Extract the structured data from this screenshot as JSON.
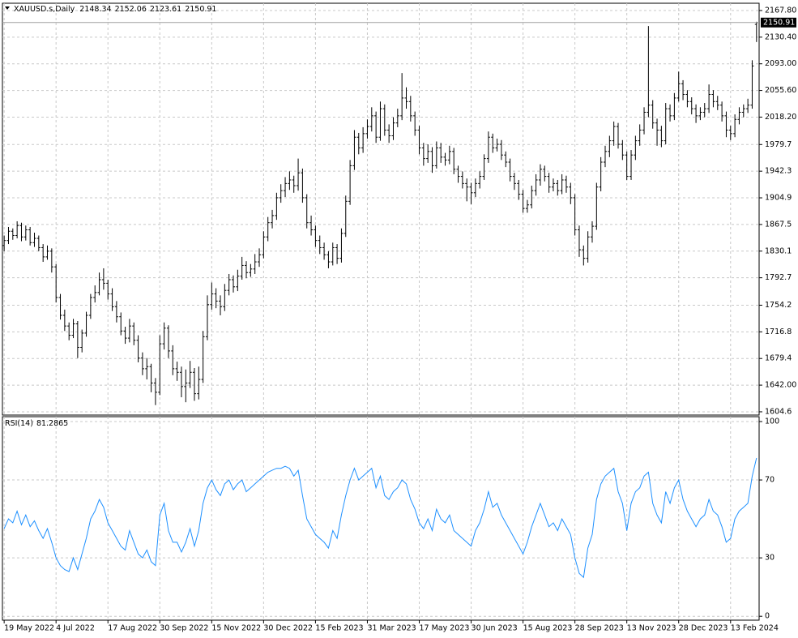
{
  "chart_data": [
    {
      "type": "ohlc",
      "title": "XAUUSD.s,Daily",
      "color": "#000000",
      "ohlc": [
        [
          1838,
          1852,
          1830,
          1845
        ],
        [
          1845,
          1864,
          1840,
          1858
        ],
        [
          1858,
          1862,
          1846,
          1852
        ],
        [
          1852,
          1872,
          1848,
          1866
        ],
        [
          1866,
          1870,
          1844,
          1850
        ],
        [
          1850,
          1866,
          1845,
          1860
        ],
        [
          1860,
          1864,
          1838,
          1842
        ],
        [
          1842,
          1856,
          1836,
          1848
        ],
        [
          1848,
          1852,
          1830,
          1835
        ],
        [
          1835,
          1840,
          1815,
          1822
        ],
        [
          1822,
          1838,
          1818,
          1830
        ],
        [
          1830,
          1834,
          1800,
          1808
        ],
        [
          1808,
          1812,
          1758,
          1765
        ],
        [
          1765,
          1770,
          1734,
          1740
        ],
        [
          1740,
          1748,
          1718,
          1725
        ],
        [
          1725,
          1730,
          1705,
          1712
        ],
        [
          1712,
          1735,
          1708,
          1728
        ],
        [
          1728,
          1732,
          1680,
          1695
        ],
        [
          1695,
          1720,
          1688,
          1715
        ],
        [
          1715,
          1745,
          1710,
          1740
        ],
        [
          1740,
          1770,
          1735,
          1765
        ],
        [
          1765,
          1782,
          1758,
          1772
        ],
        [
          1772,
          1800,
          1768,
          1790
        ],
        [
          1790,
          1806,
          1776,
          1785
        ],
        [
          1785,
          1790,
          1762,
          1770
        ],
        [
          1770,
          1778,
          1746,
          1752
        ],
        [
          1752,
          1760,
          1730,
          1738
        ],
        [
          1738,
          1744,
          1712,
          1718
        ],
        [
          1718,
          1724,
          1700,
          1708
        ],
        [
          1708,
          1735,
          1702,
          1725
        ],
        [
          1725,
          1730,
          1698,
          1705
        ],
        [
          1705,
          1712,
          1674,
          1680
        ],
        [
          1680,
          1688,
          1656,
          1665
        ],
        [
          1665,
          1680,
          1650,
          1668
        ],
        [
          1668,
          1672,
          1632,
          1645
        ],
        [
          1645,
          1652,
          1614,
          1632
        ],
        [
          1632,
          1712,
          1628,
          1700
        ],
        [
          1700,
          1730,
          1692,
          1722
        ],
        [
          1722,
          1726,
          1680,
          1690
        ],
        [
          1690,
          1698,
          1656,
          1665
        ],
        [
          1665,
          1675,
          1648,
          1660
        ],
        [
          1660,
          1668,
          1625,
          1640
        ],
        [
          1640,
          1664,
          1618,
          1645
        ],
        [
          1645,
          1676,
          1638,
          1660
        ],
        [
          1660,
          1666,
          1620,
          1630
        ],
        [
          1630,
          1668,
          1622,
          1650
        ],
        [
          1650,
          1718,
          1645,
          1710
        ],
        [
          1710,
          1768,
          1705,
          1755
        ],
        [
          1755,
          1786,
          1748,
          1770
        ],
        [
          1770,
          1778,
          1750,
          1760
        ],
        [
          1760,
          1768,
          1740,
          1752
        ],
        [
          1752,
          1784,
          1746,
          1775
        ],
        [
          1775,
          1798,
          1768,
          1790
        ],
        [
          1790,
          1796,
          1772,
          1780
        ],
        [
          1780,
          1804,
          1774,
          1795
        ],
        [
          1795,
          1822,
          1790,
          1810
        ],
        [
          1810,
          1816,
          1792,
          1800
        ],
        [
          1800,
          1812,
          1794,
          1805
        ],
        [
          1805,
          1826,
          1798,
          1815
        ],
        [
          1815,
          1834,
          1808,
          1825
        ],
        [
          1825,
          1858,
          1820,
          1850
        ],
        [
          1850,
          1878,
          1844,
          1870
        ],
        [
          1870,
          1888,
          1862,
          1880
        ],
        [
          1880,
          1912,
          1874,
          1905
        ],
        [
          1905,
          1924,
          1898,
          1915
        ],
        [
          1915,
          1934,
          1906,
          1925
        ],
        [
          1925,
          1942,
          1916,
          1930
        ],
        [
          1930,
          1936,
          1912,
          1922
        ],
        [
          1922,
          1960,
          1915,
          1940
        ],
        [
          1940,
          1946,
          1898,
          1905
        ],
        [
          1905,
          1910,
          1862,
          1870
        ],
        [
          1870,
          1880,
          1852,
          1860
        ],
        [
          1860,
          1866,
          1836,
          1845
        ],
        [
          1845,
          1852,
          1826,
          1835
        ],
        [
          1835,
          1842,
          1818,
          1825
        ],
        [
          1825,
          1830,
          1806,
          1815
        ],
        [
          1815,
          1842,
          1810,
          1835
        ],
        [
          1835,
          1840,
          1812,
          1820
        ],
        [
          1820,
          1862,
          1814,
          1855
        ],
        [
          1855,
          1908,
          1850,
          1900
        ],
        [
          1900,
          1958,
          1895,
          1950
        ],
        [
          1950,
          2000,
          1944,
          1990
        ],
        [
          1990,
          1996,
          1966,
          1975
        ],
        [
          1975,
          2004,
          1968,
          1995
        ],
        [
          1995,
          2015,
          1988,
          2005
        ],
        [
          2005,
          2032,
          1998,
          2020
        ],
        [
          2020,
          2026,
          1982,
          1990
        ],
        [
          1990,
          2040,
          1985,
          2030
        ],
        [
          2030,
          2036,
          1992,
          2000
        ],
        [
          2000,
          2008,
          1982,
          1992
        ],
        [
          1992,
          2018,
          1986,
          2010
        ],
        [
          2010,
          2030,
          2004,
          2020
        ],
        [
          2020,
          2080,
          2014,
          2045
        ],
        [
          2045,
          2060,
          2030,
          2040
        ],
        [
          2040,
          2048,
          2012,
          2020
        ],
        [
          2020,
          2026,
          1992,
          2000
        ],
        [
          2000,
          2006,
          1966,
          1975
        ],
        [
          1975,
          1982,
          1950,
          1960
        ],
        [
          1960,
          1980,
          1954,
          1970
        ],
        [
          1970,
          1976,
          1940,
          1950
        ],
        [
          1950,
          1984,
          1946,
          1975
        ],
        [
          1975,
          1982,
          1954,
          1962
        ],
        [
          1962,
          1968,
          1950,
          1958
        ],
        [
          1958,
          1978,
          1952,
          1970
        ],
        [
          1970,
          1975,
          1938,
          1945
        ],
        [
          1945,
          1950,
          1926,
          1935
        ],
        [
          1935,
          1942,
          1918,
          1925
        ],
        [
          1925,
          1932,
          1900,
          1920
        ],
        [
          1920,
          1926,
          1896,
          1912
        ],
        [
          1912,
          1932,
          1906,
          1925
        ],
        [
          1925,
          1942,
          1918,
          1935
        ],
        [
          1935,
          1966,
          1930,
          1960
        ],
        [
          1960,
          1998,
          1954,
          1990
        ],
        [
          1990,
          1995,
          1968,
          1975
        ],
        [
          1975,
          1988,
          1970,
          1980
        ],
        [
          1980,
          1986,
          1958,
          1965
        ],
        [
          1965,
          1970,
          1948,
          1955
        ],
        [
          1955,
          1960,
          1928,
          1935
        ],
        [
          1935,
          1940,
          1916,
          1925
        ],
        [
          1925,
          1930,
          1902,
          1910
        ],
        [
          1910,
          1916,
          1884,
          1890
        ],
        [
          1890,
          1902,
          1884,
          1895
        ],
        [
          1895,
          1922,
          1890,
          1915
        ],
        [
          1915,
          1938,
          1908,
          1930
        ],
        [
          1930,
          1952,
          1922,
          1945
        ],
        [
          1945,
          1950,
          1928,
          1935
        ],
        [
          1935,
          1940,
          1912,
          1920
        ],
        [
          1920,
          1932,
          1914,
          1925
        ],
        [
          1925,
          1930,
          1908,
          1915
        ],
        [
          1915,
          1938,
          1910,
          1930
        ],
        [
          1930,
          1936,
          1912,
          1920
        ],
        [
          1920,
          1926,
          1896,
          1905
        ],
        [
          1905,
          1910,
          1852,
          1860
        ],
        [
          1860,
          1866,
          1822,
          1832
        ],
        [
          1832,
          1838,
          1810,
          1820
        ],
        [
          1820,
          1858,
          1814,
          1850
        ],
        [
          1850,
          1872,
          1842,
          1865
        ],
        [
          1865,
          1926,
          1860,
          1920
        ],
        [
          1920,
          1962,
          1914,
          1955
        ],
        [
          1955,
          1978,
          1948,
          1970
        ],
        [
          1970,
          1992,
          1962,
          1985
        ],
        [
          1985,
          2012,
          1978,
          2005
        ],
        [
          2005,
          2010,
          1974,
          1980
        ],
        [
          1980,
          1986,
          1958,
          1965
        ],
        [
          1965,
          1970,
          1930,
          1935
        ],
        [
          1935,
          1972,
          1930,
          1965
        ],
        [
          1965,
          1992,
          1958,
          1985
        ],
        [
          1985,
          2008,
          1978,
          2000
        ],
        [
          2000,
          2032,
          1994,
          2025
        ],
        [
          2025,
          2146,
          2018,
          2035
        ],
        [
          2035,
          2042,
          2002,
          2010
        ],
        [
          2010,
          2016,
          1978,
          2000
        ],
        [
          2000,
          2006,
          1976,
          1985
        ],
        [
          1985,
          2038,
          1980,
          2030
        ],
        [
          2030,
          2036,
          2012,
          2020
        ],
        [
          2020,
          2052,
          2014,
          2045
        ],
        [
          2045,
          2082,
          2040,
          2065
        ],
        [
          2065,
          2070,
          2042,
          2050
        ],
        [
          2050,
          2056,
          2032,
          2040
        ],
        [
          2040,
          2046,
          2022,
          2030
        ],
        [
          2030,
          2036,
          2010,
          2020
        ],
        [
          2020,
          2032,
          2014,
          2025
        ],
        [
          2025,
          2038,
          2018,
          2030
        ],
        [
          2030,
          2064,
          2024,
          2050
        ],
        [
          2050,
          2056,
          2032,
          2040
        ],
        [
          2040,
          2048,
          2028,
          2035
        ],
        [
          2035,
          2040,
          2012,
          2020
        ],
        [
          2020,
          2026,
          1990,
          2000
        ],
        [
          2000,
          2006,
          1986,
          1995
        ],
        [
          1995,
          2022,
          1990,
          2015
        ],
        [
          2015,
          2032,
          2008,
          2025
        ],
        [
          2025,
          2036,
          2018,
          2030
        ],
        [
          2030,
          2044,
          2024,
          2035
        ],
        [
          2035,
          2098,
          2030,
          2090
        ],
        [
          2148.34,
          2152.06,
          2123.61,
          2150.91
        ]
      ],
      "xlim": [
        -0.4,
        174.6
      ],
      "xticks": [
        {
          "value": 0,
          "label": "19 May 2022"
        },
        {
          "value": 12,
          "label": "4 Jul 2022"
        },
        {
          "value": 24,
          "label": "17 Aug 2022"
        },
        {
          "value": 36,
          "label": "30 Sep 2022"
        },
        {
          "value": 48,
          "label": "15 Nov 2022"
        },
        {
          "value": 60,
          "label": "30 Dec 2022"
        },
        {
          "value": 72,
          "label": "15 Feb 2023"
        },
        {
          "value": 84,
          "label": "31 Mar 2023"
        },
        {
          "value": 96,
          "label": "17 May 2023"
        },
        {
          "value": 108,
          "label": "30 Jun 2023"
        },
        {
          "value": 120,
          "label": "15 Aug 2023"
        },
        {
          "value": 132,
          "label": "28 Sep 2023"
        },
        {
          "value": 144,
          "label": "13 Nov 2023"
        },
        {
          "value": 156,
          "label": "28 Dec 2023"
        },
        {
          "value": 168,
          "label": "13 Feb 2024"
        }
      ],
      "ylim": [
        1600,
        2178
      ],
      "yticks": [
        {
          "value": 2167.8,
          "label": "2167.80"
        },
        {
          "value": 2130.4,
          "label": "2130.40"
        },
        {
          "value": 2093,
          "label": "2093.00"
        },
        {
          "value": 2055.6,
          "label": "2055.60"
        },
        {
          "value": 2018.2,
          "label": "2018.20"
        },
        1979.7,
        1942.3,
        1904.9,
        1867.5,
        1830.1,
        1792.7,
        1754.2,
        1716.8,
        1679.4,
        {
          "value": 1642,
          "label": "1642.00"
        },
        1604.6
      ],
      "grid": true
    },
    {
      "type": "line",
      "title": "RSI(14)",
      "color": "#1e90ff",
      "values": [
        45,
        50,
        48,
        54,
        47,
        52,
        46,
        49,
        44,
        40,
        45,
        38,
        30,
        26,
        24,
        23,
        30,
        24,
        32,
        40,
        50,
        54,
        60,
        56,
        48,
        44,
        40,
        36,
        34,
        44,
        38,
        32,
        30,
        34,
        28,
        26,
        52,
        58,
        44,
        38,
        38,
        33,
        38,
        45,
        36,
        44,
        58,
        66,
        70,
        65,
        62,
        68,
        70,
        65,
        68,
        70,
        64,
        66,
        68,
        70,
        72,
        74,
        75,
        76,
        76,
        77,
        76,
        72,
        75,
        62,
        50,
        46,
        42,
        40,
        38,
        35,
        44,
        40,
        52,
        62,
        70,
        76,
        70,
        72,
        74,
        76,
        66,
        72,
        62,
        60,
        64,
        66,
        70,
        68,
        60,
        55,
        48,
        45,
        50,
        44,
        55,
        50,
        48,
        52,
        44,
        42,
        40,
        38,
        36,
        44,
        48,
        55,
        64,
        56,
        58,
        52,
        48,
        44,
        40,
        36,
        32,
        38,
        46,
        52,
        58,
        52,
        46,
        48,
        44,
        50,
        46,
        42,
        30,
        22,
        20,
        35,
        42,
        60,
        68,
        72,
        74,
        76,
        64,
        58,
        44,
        58,
        64,
        66,
        72,
        74,
        58,
        52,
        48,
        64,
        58,
        66,
        70,
        60,
        54,
        50,
        46,
        50,
        52,
        60,
        54,
        52,
        46,
        38,
        40,
        50,
        54,
        56,
        58,
        72,
        81.2865
      ],
      "xlim": [
        -0.4,
        174.6
      ],
      "ylim": [
        -2,
        102.5
      ],
      "yticks": [
        100,
        70,
        30,
        0
      ],
      "grid": true
    }
  ]
}
